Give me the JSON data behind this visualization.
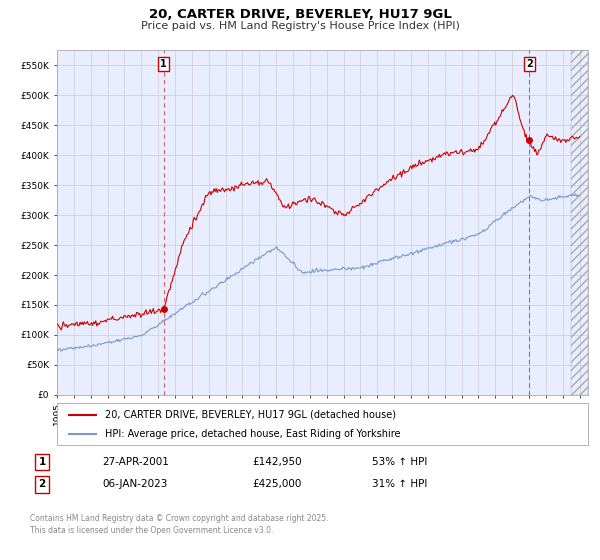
{
  "title": "20, CARTER DRIVE, BEVERLEY, HU17 9GL",
  "subtitle": "Price paid vs. HM Land Registry's House Price Index (HPI)",
  "ylim": [
    0,
    575000
  ],
  "xlim": [
    1995.0,
    2026.5
  ],
  "yticks": [
    0,
    50000,
    100000,
    150000,
    200000,
    250000,
    300000,
    350000,
    400000,
    450000,
    500000,
    550000
  ],
  "ytick_labels": [
    "£0",
    "£50K",
    "£100K",
    "£150K",
    "£200K",
    "£250K",
    "£300K",
    "£350K",
    "£400K",
    "£450K",
    "£500K",
    "£550K"
  ],
  "xticks": [
    1995,
    1996,
    1997,
    1998,
    1999,
    2000,
    2001,
    2002,
    2003,
    2004,
    2005,
    2006,
    2007,
    2008,
    2009,
    2010,
    2011,
    2012,
    2013,
    2014,
    2015,
    2016,
    2017,
    2018,
    2019,
    2020,
    2021,
    2022,
    2023,
    2024,
    2025,
    2026
  ],
  "grid_color": "#cccccc",
  "bg_color": "#e8eeff",
  "red_line_color": "#cc0000",
  "blue_line_color": "#7799cc",
  "marker1_x": 2001.32,
  "marker1_y": 142950,
  "marker2_x": 2023.02,
  "marker2_y": 425000,
  "vline1_x": 2001.32,
  "vline2_x": 2023.02,
  "vline_color": "#cc0000",
  "legend_label_red": "20, CARTER DRIVE, BEVERLEY, HU17 9GL (detached house)",
  "legend_label_blue": "HPI: Average price, detached house, East Riding of Yorkshire",
  "table_row1": [
    "1",
    "27-APR-2001",
    "£142,950",
    "53% ↑ HPI"
  ],
  "table_row2": [
    "2",
    "06-JAN-2023",
    "£425,000",
    "31% ↑ HPI"
  ],
  "footer": "Contains HM Land Registry data © Crown copyright and database right 2025.\nThis data is licensed under the Open Government Licence v3.0.",
  "title_fontsize": 9.5,
  "subtitle_fontsize": 8,
  "tick_fontsize": 6.5,
  "legend_fontsize": 7,
  "table_fontsize": 7.5,
  "footer_fontsize": 5.5,
  "annotation_fontsize": 7
}
